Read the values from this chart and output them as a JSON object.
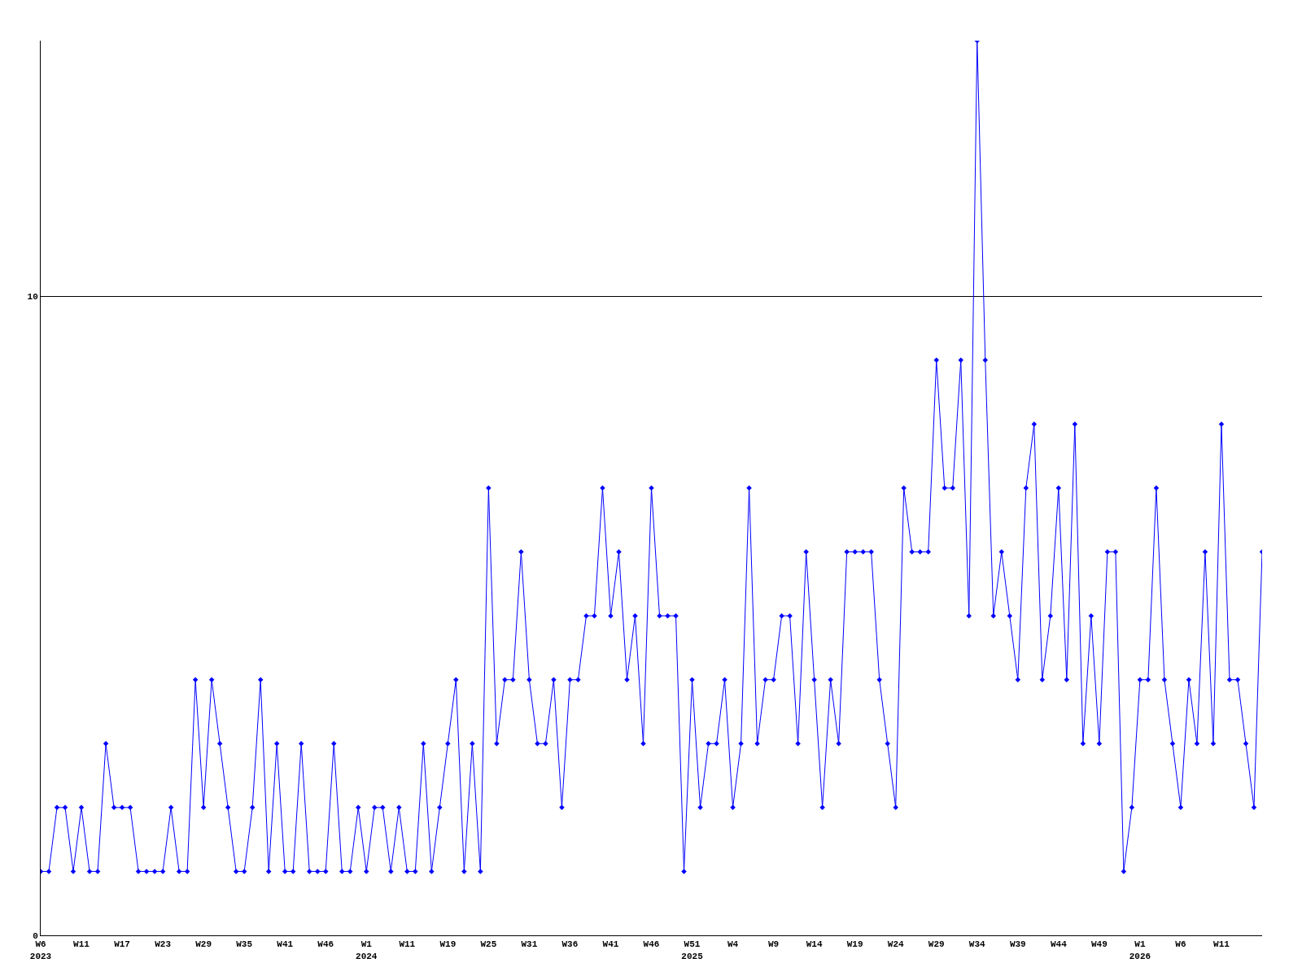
{
  "chart_data": {
    "type": "line",
    "categories": [
      "W6\n2023",
      null,
      null,
      null,
      null,
      "W11",
      null,
      null,
      null,
      null,
      "W17",
      null,
      null,
      null,
      null,
      "W23",
      null,
      null,
      null,
      null,
      "W29",
      null,
      null,
      null,
      null,
      "W35",
      null,
      null,
      null,
      null,
      "W41",
      null,
      null,
      null,
      null,
      "W46",
      null,
      null,
      null,
      null,
      "W1\n2024",
      null,
      null,
      null,
      null,
      "W11",
      null,
      null,
      null,
      null,
      "W19",
      null,
      null,
      null,
      null,
      "W25",
      null,
      null,
      null,
      null,
      "W31",
      null,
      null,
      null,
      null,
      "W36",
      null,
      null,
      null,
      null,
      "W41",
      null,
      null,
      null,
      null,
      "W46",
      null,
      null,
      null,
      null,
      "W51\n2025",
      null,
      null,
      null,
      null,
      "W4",
      null,
      null,
      null,
      null,
      "W9",
      null,
      null,
      null,
      null,
      "W14",
      null,
      null,
      null,
      null,
      "W19",
      null,
      null,
      null,
      null,
      "W24",
      null,
      null,
      null,
      null,
      "W29",
      null,
      null,
      null,
      null,
      "W34",
      null,
      null,
      null,
      null,
      "W39",
      null,
      null,
      null,
      null,
      "W44",
      null,
      null,
      null,
      null,
      "W49",
      null,
      null,
      null,
      null,
      "W1\n2026",
      null,
      null,
      null,
      null,
      "W6",
      null,
      null,
      null,
      null,
      "W11",
      null,
      null,
      null,
      null,
      null
    ],
    "series": [
      {
        "color": "#0000ff",
        "values": [
          1,
          1,
          2,
          2,
          1,
          2,
          1,
          1,
          3,
          2,
          2,
          2,
          1,
          1,
          1,
          1,
          2,
          1,
          1,
          4,
          2,
          4,
          3,
          2,
          1,
          1,
          2,
          4,
          1,
          3,
          1,
          1,
          3,
          1,
          1,
          1,
          3,
          1,
          1,
          2,
          1,
          2,
          2,
          1,
          2,
          1,
          1,
          3,
          1,
          2,
          3,
          4,
          1,
          3,
          1,
          7,
          3,
          4,
          4,
          6,
          4,
          3,
          3,
          4,
          2,
          4,
          4,
          5,
          5,
          7,
          5,
          6,
          4,
          5,
          3,
          7,
          5,
          5,
          5,
          1,
          4,
          2,
          3,
          3,
          4,
          2,
          3,
          7,
          3,
          4,
          4,
          5,
          5,
          3,
          6,
          4,
          2,
          4,
          3,
          6,
          6,
          6,
          6,
          4,
          3,
          2,
          7,
          6,
          6,
          6,
          9,
          7,
          7,
          9,
          5,
          14,
          9,
          5,
          6,
          5,
          4,
          7,
          8,
          4,
          5,
          7,
          4,
          8,
          3,
          5,
          3,
          6,
          6,
          1,
          2,
          4,
          4,
          7,
          4,
          3,
          2,
          4,
          3,
          6,
          3,
          8,
          4,
          4,
          3,
          2,
          6
        ]
      }
    ],
    "ylim": [
      0,
      14
    ],
    "yticks": [
      0,
      10
    ],
    "grid": "y",
    "marker": "diamond",
    "line_style": "solid"
  }
}
